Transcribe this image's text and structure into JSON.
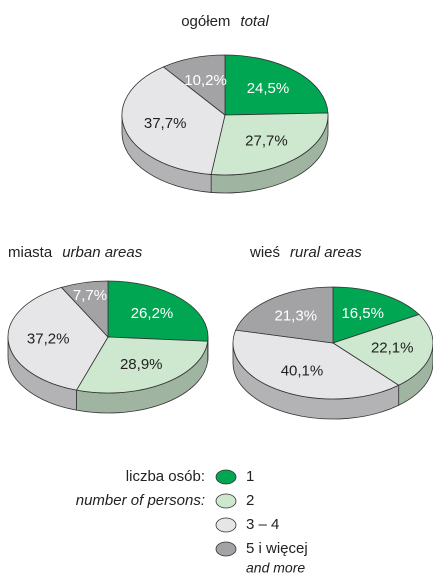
{
  "chart_data": [
    {
      "type": "pie",
      "title": "ogółem",
      "subtitle": "total",
      "values": [
        24.5,
        27.7,
        37.7,
        10.2
      ],
      "value_labels": [
        "24,5%",
        "27,7%",
        "37,7%",
        "10,2%"
      ]
    },
    {
      "type": "pie",
      "title": "miasta",
      "subtitle": "urban areas",
      "values": [
        26.2,
        28.9,
        37.2,
        7.7
      ],
      "value_labels": [
        "26,2%",
        "28,9%",
        "37,2%",
        "7,7%"
      ]
    },
    {
      "type": "pie",
      "title": "wieś",
      "subtitle": "rural areas",
      "values": [
        16.5,
        22.1,
        40.1,
        21.3
      ],
      "value_labels": [
        "16,5%",
        "22,1%",
        "40,1%",
        "21,3%"
      ]
    }
  ],
  "legend": {
    "title": "liczba osób:",
    "subtitle": "number of persons:",
    "entries": [
      {
        "label": "1",
        "color": "#00a651"
      },
      {
        "label": "2",
        "color": "#cde8cf"
      },
      {
        "label": "3 – 4",
        "color": "#e6e6e8"
      },
      {
        "label": "5 i więcej",
        "note": "and more",
        "color": "#a3a3a6"
      }
    ]
  }
}
